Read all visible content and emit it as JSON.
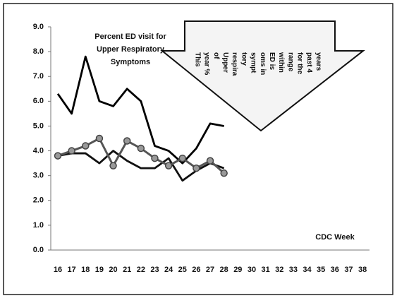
{
  "chart_data": {
    "type": "line",
    "title": [
      "Percent ED visit for",
      "Upper Respiratory",
      "Symptoms"
    ],
    "x_label": "CDC Week",
    "categories": [
      "16",
      "17",
      "18",
      "19",
      "20",
      "21",
      "22",
      "23",
      "24",
      "25",
      "26",
      "27",
      "28",
      "29",
      "30",
      "31",
      "32",
      "33",
      "34",
      "35",
      "36",
      "37",
      "38"
    ],
    "ylim": [
      0,
      9
    ],
    "yticks": [
      {
        "value": 0,
        "label": "0.0"
      },
      {
        "value": 1,
        "label": "1.0"
      },
      {
        "value": 2,
        "label": "2.0"
      },
      {
        "value": 3,
        "label": "3.0"
      },
      {
        "value": 4,
        "label": "4.0"
      },
      {
        "value": 5,
        "label": "5.0"
      },
      {
        "value": 6,
        "label": "6.0"
      },
      {
        "value": 7,
        "label": "7.0"
      },
      {
        "value": 8,
        "label": "8.0"
      },
      {
        "value": 9,
        "label": "9.0"
      }
    ],
    "grid": false,
    "series": [
      {
        "color": "#000000",
        "values": [
          6.3,
          5.5,
          7.8,
          6.0,
          5.8,
          6.5,
          6.0,
          4.2,
          4.0,
          3.5,
          4.1,
          5.1,
          5.0,
          null,
          null,
          null,
          null,
          null,
          null,
          null,
          null,
          null,
          null
        ]
      },
      {
        "color": "#111111",
        "values": [
          3.8,
          3.9,
          3.9,
          3.5,
          4.0,
          3.6,
          3.3,
          3.3,
          3.7,
          2.8,
          3.2,
          3.5,
          3.3,
          null,
          null,
          null,
          null,
          null,
          null,
          null,
          null,
          null,
          null
        ]
      },
      {
        "color": "#555555",
        "marker": "circle",
        "values": [
          3.8,
          4.0,
          4.2,
          4.5,
          3.4,
          4.4,
          4.1,
          3.7,
          3.4,
          3.7,
          3.3,
          3.6,
          3.1,
          null,
          null,
          null,
          null,
          null,
          null,
          null,
          null,
          null,
          null
        ]
      }
    ],
    "annotation": [
      "This",
      "year %",
      "of",
      "Upper",
      "respira",
      "tory",
      "sympt",
      "oms in",
      "ED is",
      "within",
      "range",
      "for the",
      "past 4",
      "years"
    ]
  }
}
